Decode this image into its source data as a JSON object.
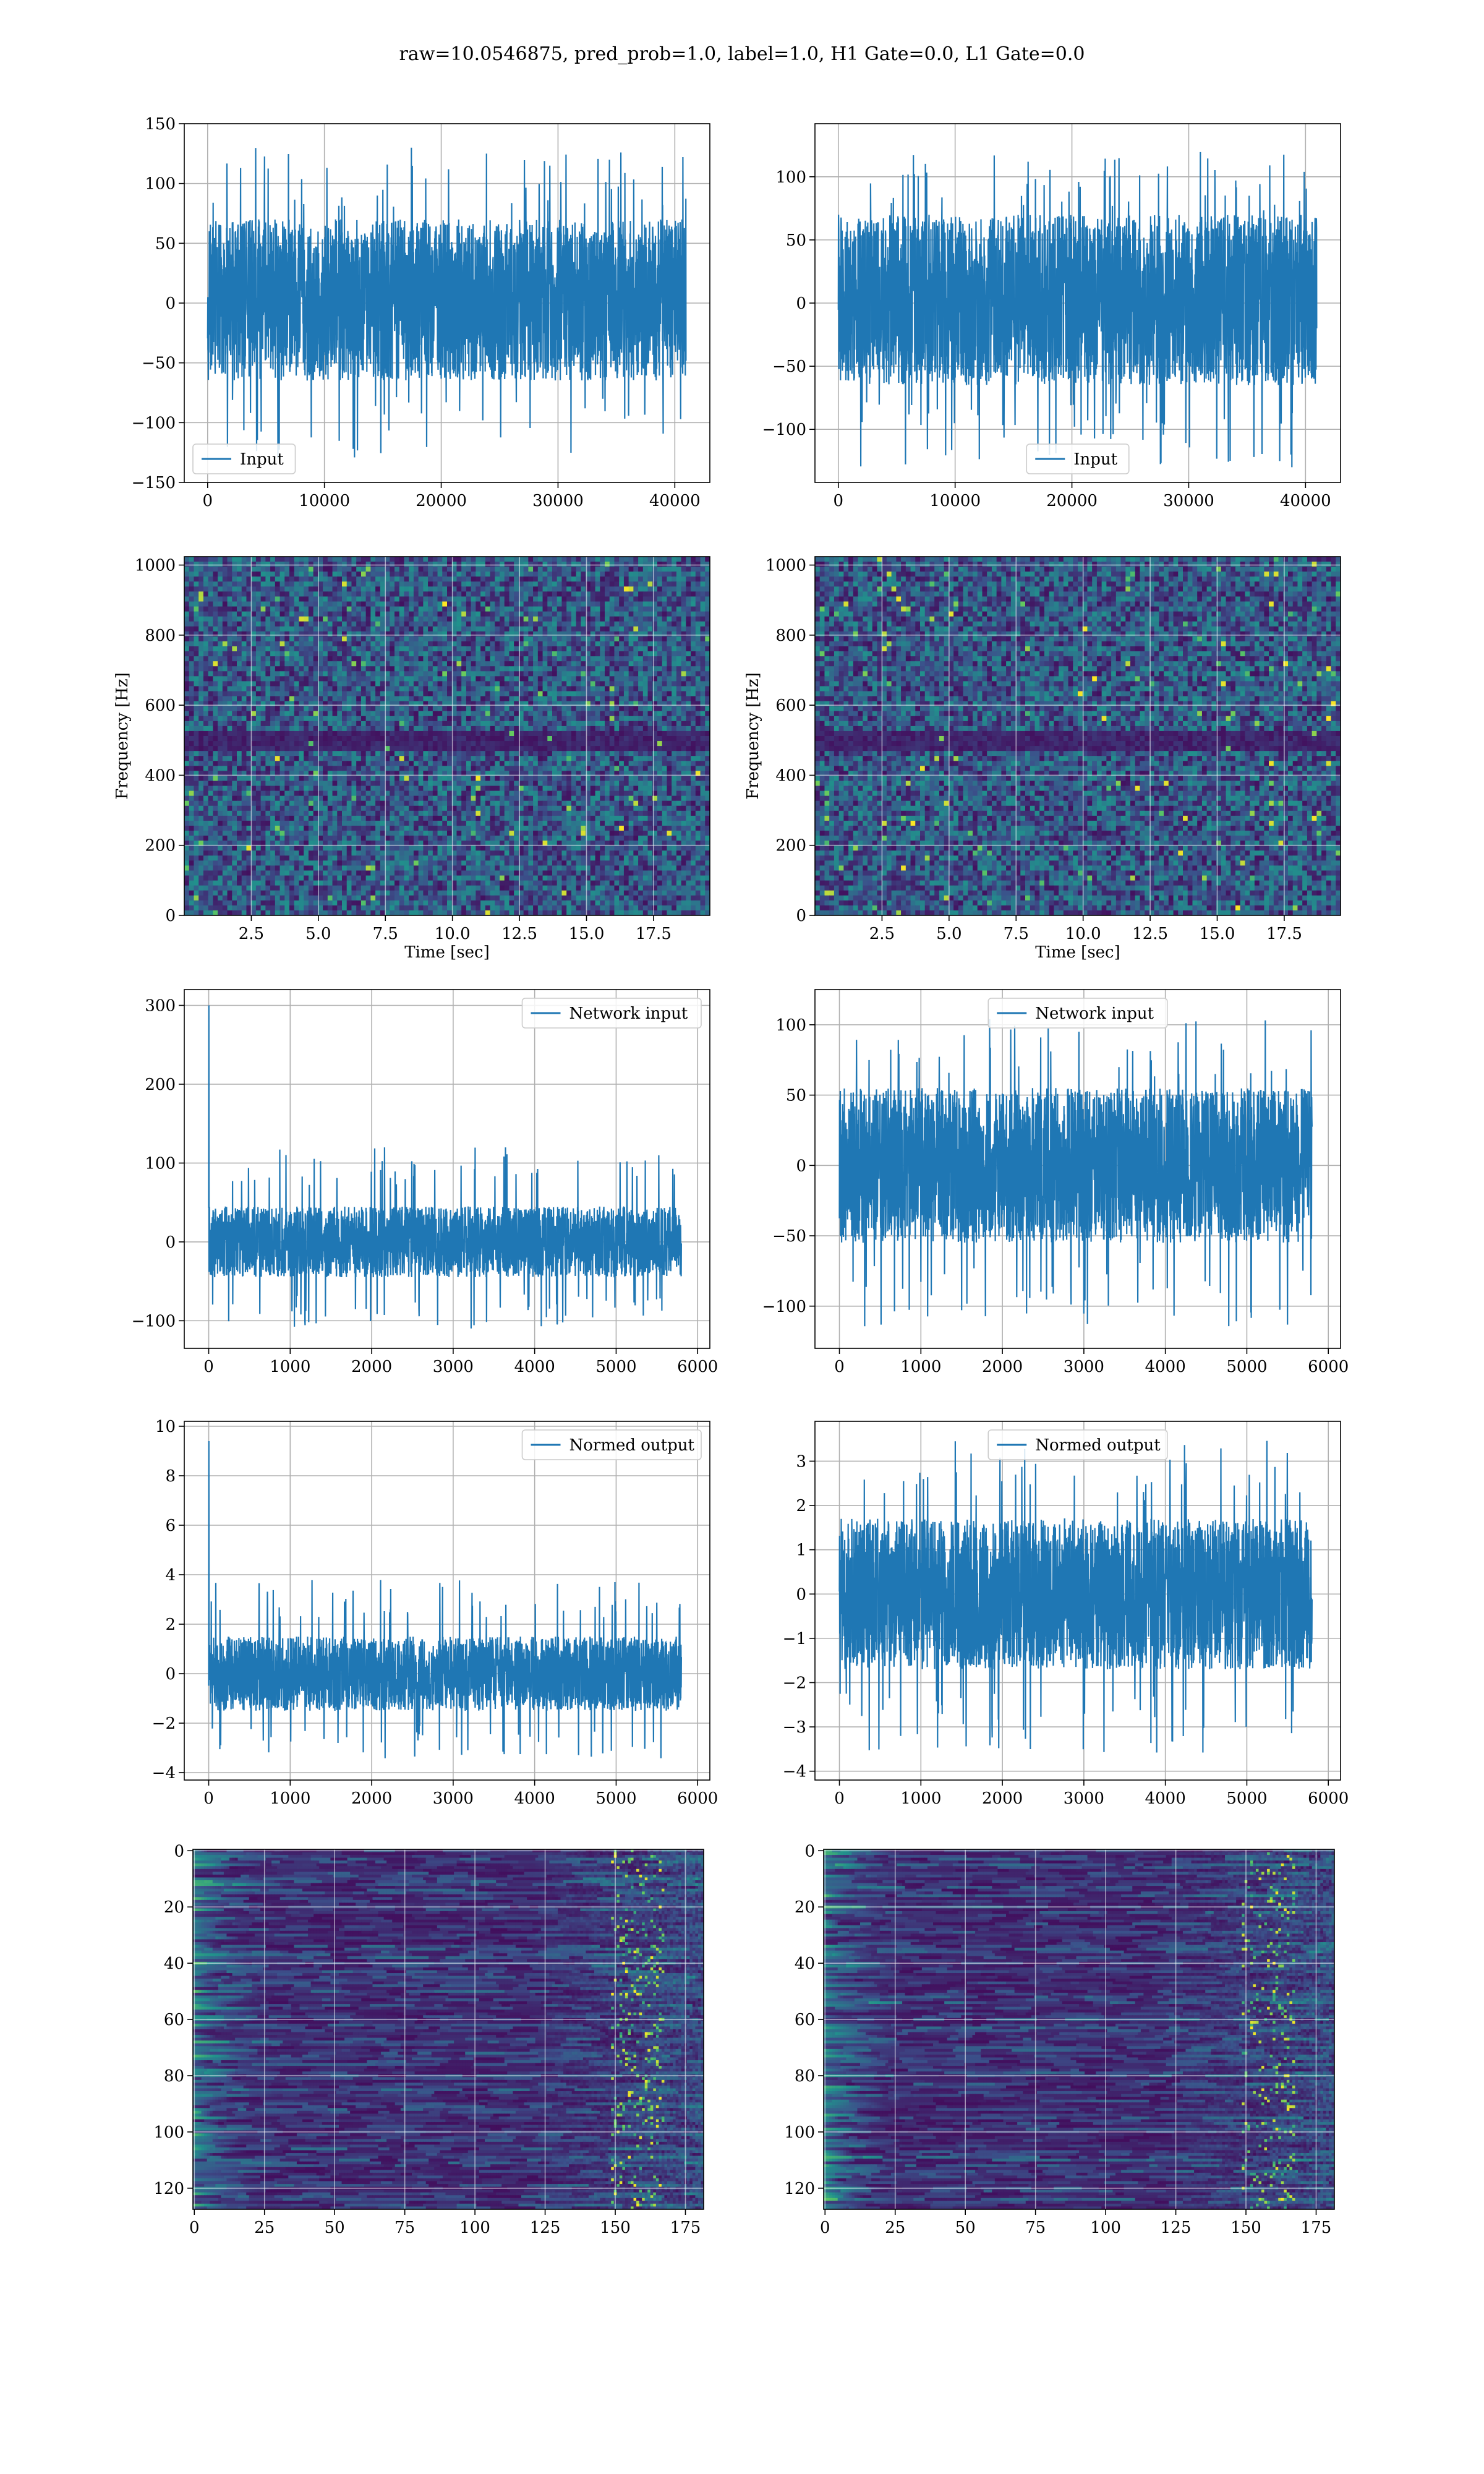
{
  "figure": {
    "title": "raw=10.0546875, pred_prob=1.0, label=1.0, H1 Gate=0.0, L1 Gate=0.0"
  },
  "colors": {
    "line": "#1f77b4",
    "grid": "#b0b0b0",
    "viridis_dark": "#440154",
    "viridis_mid": "#21918c",
    "viridis_bright": "#fde725"
  },
  "chart_data": [
    {
      "id": "input-left",
      "type": "line",
      "row": 0,
      "col": 0,
      "xlim": [
        -2000,
        43000
      ],
      "ylim": [
        -150,
        150
      ],
      "xticks": [
        0,
        10000,
        20000,
        30000,
        40000
      ],
      "yticks": [
        -150,
        -100,
        -50,
        0,
        50,
        100,
        150
      ],
      "ytick_labels": [
        "−150",
        "−100",
        "−50",
        "0",
        "50",
        "100",
        "150"
      ],
      "legend": {
        "label": "Input",
        "loc": "lower-left"
      },
      "series": [
        {
          "name": "Input",
          "x_range": [
            0,
            40959
          ],
          "band": [
            -65,
            70
          ],
          "spike_range": [
            -130,
            130
          ]
        }
      ],
      "grid": true
    },
    {
      "id": "input-right",
      "type": "line",
      "row": 0,
      "col": 1,
      "xlim": [
        -2000,
        43000
      ],
      "ylim": [
        -142,
        142
      ],
      "xticks": [
        0,
        10000,
        20000,
        30000,
        40000
      ],
      "yticks": [
        -100,
        -50,
        0,
        50,
        100
      ],
      "ytick_labels": [
        "−100",
        "−50",
        "0",
        "50",
        "100"
      ],
      "legend": {
        "label": "Input",
        "loc": "lower-center"
      },
      "series": [
        {
          "name": "Input",
          "x_range": [
            0,
            40959
          ],
          "band": [
            -65,
            70
          ],
          "spike_range": [
            -130,
            120
          ]
        }
      ],
      "grid": true
    },
    {
      "id": "spectrogram-left",
      "type": "heatmap",
      "row": 1,
      "col": 0,
      "xlim": [
        0,
        19.6
      ],
      "ylim": [
        0,
        1024
      ],
      "xticks": [
        2.5,
        5.0,
        7.5,
        10.0,
        12.5,
        15.0,
        17.5
      ],
      "xtick_labels": [
        "2.5",
        "5.0",
        "7.5",
        "10.0",
        "12.5",
        "15.0",
        "17.5"
      ],
      "yticks": [
        0,
        200,
        400,
        600,
        800,
        1000
      ],
      "xlabel": "Time [sec]",
      "ylabel": "Frequency [Hz]",
      "grid": true,
      "colormap": "viridis"
    },
    {
      "id": "spectrogram-right",
      "type": "heatmap",
      "row": 1,
      "col": 1,
      "xlim": [
        0,
        19.6
      ],
      "ylim": [
        0,
        1024
      ],
      "xticks": [
        2.5,
        5.0,
        7.5,
        10.0,
        12.5,
        15.0,
        17.5
      ],
      "xtick_labels": [
        "2.5",
        "5.0",
        "7.5",
        "10.0",
        "12.5",
        "15.0",
        "17.5"
      ],
      "yticks": [
        0,
        200,
        400,
        600,
        800,
        1000
      ],
      "xlabel": "Time [sec]",
      "ylabel": "Frequency [Hz]",
      "grid": true,
      "colormap": "viridis"
    },
    {
      "id": "network-input-left",
      "type": "line",
      "row": 2,
      "col": 0,
      "xlim": [
        -300,
        6150
      ],
      "ylim": [
        -135,
        320
      ],
      "xticks": [
        0,
        1000,
        2000,
        3000,
        4000,
        5000,
        6000
      ],
      "yticks": [
        -100,
        0,
        100,
        200,
        300
      ],
      "ytick_labels": [
        "−100",
        "0",
        "100",
        "200",
        "300"
      ],
      "legend": {
        "label": "Network input",
        "loc": "upper-right"
      },
      "series": [
        {
          "name": "Network input",
          "x_range": [
            0,
            5800
          ],
          "band": [
            -45,
            45
          ],
          "spike_range": [
            -110,
            120
          ],
          "initial_spike": 300
        }
      ],
      "grid": true
    },
    {
      "id": "network-input-right",
      "type": "line",
      "row": 2,
      "col": 1,
      "xlim": [
        -300,
        6150
      ],
      "ylim": [
        -130,
        125
      ],
      "xticks": [
        0,
        1000,
        2000,
        3000,
        4000,
        5000,
        6000
      ],
      "yticks": [
        -100,
        -50,
        0,
        50,
        100
      ],
      "ytick_labels": [
        "−100",
        "−50",
        "0",
        "50",
        "100"
      ],
      "legend": {
        "label": "Network input",
        "loc": "upper-center"
      },
      "series": [
        {
          "name": "Network input",
          "x_range": [
            0,
            5800
          ],
          "band": [
            -55,
            55
          ],
          "spike_range": [
            -115,
            105
          ]
        }
      ],
      "grid": true
    },
    {
      "id": "normed-output-left",
      "type": "line",
      "row": 3,
      "col": 0,
      "xlim": [
        -300,
        6150
      ],
      "ylim": [
        -4.3,
        10.2
      ],
      "xticks": [
        0,
        1000,
        2000,
        3000,
        4000,
        5000,
        6000
      ],
      "yticks": [
        -4,
        -2,
        0,
        2,
        4,
        6,
        8,
        10
      ],
      "ytick_labels": [
        "−4",
        "−2",
        "0",
        "2",
        "4",
        "6",
        "8",
        "10"
      ],
      "legend": {
        "label": "Normed output",
        "loc": "upper-right"
      },
      "series": [
        {
          "name": "Normed output",
          "x_range": [
            0,
            5800
          ],
          "band": [
            -1.5,
            1.5
          ],
          "spike_range": [
            -3.5,
            3.8
          ],
          "initial_spike": 9.4
        }
      ],
      "grid": true
    },
    {
      "id": "normed-output-right",
      "type": "line",
      "row": 3,
      "col": 1,
      "xlim": [
        -300,
        6150
      ],
      "ylim": [
        -4.2,
        3.9
      ],
      "xticks": [
        0,
        1000,
        2000,
        3000,
        4000,
        5000,
        6000
      ],
      "yticks": [
        -4,
        -3,
        -2,
        -1,
        0,
        1,
        2,
        3
      ],
      "ytick_labels": [
        "−4",
        "−3",
        "−2",
        "−1",
        "0",
        "1",
        "2",
        "3"
      ],
      "legend": {
        "label": "Normed output",
        "loc": "upper-center"
      },
      "series": [
        {
          "name": "Normed output",
          "x_range": [
            0,
            5800
          ],
          "band": [
            -1.7,
            1.7
          ],
          "spike_range": [
            -3.7,
            3.5
          ]
        }
      ],
      "grid": true
    },
    {
      "id": "feature-map-left",
      "type": "heatmap",
      "row": 4,
      "col": 0,
      "xlim": [
        -0.5,
        181.5
      ],
      "ylim": [
        127.5,
        -0.5
      ],
      "xticks": [
        0,
        25,
        50,
        75,
        100,
        125,
        150,
        175
      ],
      "yticks": [
        0,
        20,
        40,
        60,
        80,
        100,
        120
      ],
      "grid": true,
      "colormap": "viridis"
    },
    {
      "id": "feature-map-right",
      "type": "heatmap",
      "row": 4,
      "col": 1,
      "xlim": [
        -0.5,
        181.5
      ],
      "ylim": [
        127.5,
        -0.5
      ],
      "xticks": [
        0,
        25,
        50,
        75,
        100,
        125,
        150,
        175
      ],
      "yticks": [
        0,
        20,
        40,
        60,
        80,
        100,
        120
      ],
      "grid": true,
      "colormap": "viridis"
    }
  ]
}
